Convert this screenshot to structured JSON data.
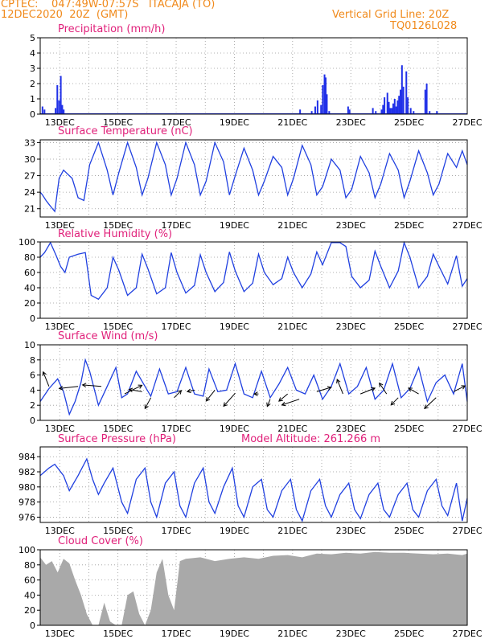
{
  "header": {
    "line1_left": "CPTEC:    047:49W-07:57S   ITACAJA (TO)",
    "line2_left": "12DEC2020  20Z  (GMT)",
    "line1_right": "Vertical Grid Line: 20Z",
    "line2_right": "TQ0126L028"
  },
  "colors": {
    "header": "#f08a1c",
    "title": "#e0207a",
    "series": "#2040e0",
    "bars": "#2030e8",
    "cloud": "#a9a9a9",
    "grid": "#999999"
  },
  "x_tick_labels": [
    "13DEC",
    "15DEC",
    "17DEC",
    "19DEC",
    "21DEC",
    "23DEC",
    "25DEC",
    "27DEC"
  ],
  "chart_data": [
    {
      "type": "bar",
      "title": "Precipitation (mm/h)",
      "ylim": [
        0,
        5
      ],
      "yticks": [
        0,
        1,
        2,
        3,
        4,
        5
      ],
      "x_days": [
        0.05,
        0.12,
        0.5,
        0.56,
        0.62,
        0.68,
        0.73,
        0.78,
        8.9,
        9.3,
        9.42,
        9.5,
        9.62,
        9.68,
        9.74,
        9.78,
        9.82,
        9.9,
        10.55,
        10.6,
        11.4,
        11.5,
        11.7,
        11.75,
        11.8,
        11.9,
        11.95,
        12.0,
        12.05,
        12.1,
        12.15,
        12.2,
        12.25,
        12.3,
        12.35,
        12.4,
        12.45,
        12.55,
        12.6,
        12.7,
        12.8,
        13.2,
        13.25,
        13.35,
        13.6
      ],
      "values": [
        0.5,
        0.3,
        0.4,
        1.9,
        0.9,
        2.5,
        0.6,
        0.3,
        0.3,
        0.2,
        0.5,
        0.9,
        0.6,
        1.9,
        2.6,
        2.4,
        1.3,
        0.2,
        0.5,
        0.3,
        0.4,
        0.2,
        0.3,
        0.6,
        1.1,
        1.4,
        0.8,
        0.4,
        0.4,
        0.7,
        1.0,
        0.5,
        0.9,
        1.2,
        1.6,
        3.2,
        1.8,
        2.8,
        1.1,
        0.4,
        0.2,
        1.6,
        2.0,
        0.2,
        0.2
      ],
      "x_range_days": [
        0,
        14.67
      ]
    },
    {
      "type": "line",
      "title": "Surface Temperature (nC)",
      "ylim": [
        19.5,
        33.5
      ],
      "yticks": [
        21,
        24,
        27,
        30,
        33
      ],
      "x_days": [
        0,
        0.08,
        0.2,
        0.3,
        0.5,
        0.65,
        0.8,
        1.1,
        1.3,
        1.5,
        1.7,
        2.0,
        2.3,
        2.5,
        2.7,
        3.0,
        3.3,
        3.5,
        3.7,
        4.0,
        4.3,
        4.5,
        4.7,
        5.0,
        5.3,
        5.5,
        5.7,
        6.0,
        6.3,
        6.5,
        6.7,
        7.0,
        7.3,
        7.5,
        7.7,
        8.0,
        8.3,
        8.5,
        8.7,
        9.0,
        9.3,
        9.5,
        9.7,
        10.0,
        10.3,
        10.5,
        10.7,
        11.0,
        11.3,
        11.5,
        11.7,
        12.0,
        12.3,
        12.5,
        12.7,
        13.0,
        13.3,
        13.5,
        13.7,
        14.0,
        14.3,
        14.5,
        14.67
      ],
      "values": [
        24,
        23.5,
        22.5,
        21.8,
        20.5,
        26.5,
        28,
        26.5,
        23,
        22.5,
        29,
        33,
        28,
        23.5,
        27.5,
        33,
        28.5,
        23.5,
        26.5,
        33,
        29,
        23.5,
        26.5,
        33,
        29,
        23.5,
        26,
        33,
        29.5,
        23.5,
        27,
        32,
        28,
        23.5,
        26,
        30.5,
        28.5,
        23.5,
        26.5,
        32.5,
        29,
        23.5,
        25,
        30,
        28,
        23,
        24.5,
        30.5,
        27.5,
        23,
        25.5,
        31,
        28,
        23,
        26,
        31.5,
        27.5,
        23.5,
        25.5,
        31,
        28.5,
        31.5,
        29
      ]
    },
    {
      "type": "line",
      "title": "Relative Humidity (%)",
      "ylim": [
        0,
        100
      ],
      "yticks": [
        0,
        20,
        40,
        60,
        80,
        100
      ],
      "x_days": [
        0,
        0.15,
        0.35,
        0.55,
        0.7,
        0.85,
        1.0,
        1.3,
        1.55,
        1.75,
        2.0,
        2.3,
        2.5,
        2.7,
        3.0,
        3.3,
        3.5,
        3.7,
        4.0,
        4.3,
        4.5,
        4.7,
        5.0,
        5.3,
        5.5,
        5.7,
        6.0,
        6.3,
        6.5,
        6.7,
        7.0,
        7.3,
        7.5,
        7.7,
        8.0,
        8.3,
        8.5,
        8.7,
        9.0,
        9.3,
        9.5,
        9.7,
        10.0,
        10.3,
        10.5,
        10.7,
        11.0,
        11.3,
        11.5,
        11.7,
        12.0,
        12.3,
        12.5,
        12.7,
        13.0,
        13.3,
        13.5,
        13.7,
        14.0,
        14.3,
        14.5,
        14.67
      ],
      "values": [
        80,
        86,
        99,
        82,
        68,
        60,
        80,
        84,
        86,
        30,
        25,
        40,
        80,
        63,
        30,
        40,
        84,
        65,
        32,
        40,
        86,
        60,
        33,
        43,
        83,
        60,
        35,
        47,
        87,
        62,
        35,
        46,
        84,
        60,
        44,
        52,
        80,
        60,
        40,
        58,
        87,
        70,
        99,
        99,
        94,
        55,
        40,
        50,
        88,
        68,
        40,
        62,
        99,
        80,
        40,
        55,
        84,
        68,
        45,
        82,
        42,
        52
      ]
    },
    {
      "type": "line",
      "title": "Surface Wind (m/s)",
      "ylim": [
        0,
        10
      ],
      "yticks": [
        0,
        2,
        4,
        6,
        8,
        10
      ],
      "x_days": [
        0,
        0.3,
        0.6,
        0.8,
        1.0,
        1.2,
        1.4,
        1.55,
        1.7,
        2.0,
        2.3,
        2.6,
        2.8,
        3.0,
        3.3,
        3.6,
        3.8,
        4.1,
        4.4,
        4.7,
        5.0,
        5.3,
        5.6,
        5.8,
        6.1,
        6.4,
        6.7,
        7.0,
        7.3,
        7.6,
        7.9,
        8.2,
        8.5,
        8.8,
        9.1,
        9.4,
        9.7,
        10.0,
        10.3,
        10.6,
        10.9,
        11.2,
        11.5,
        11.8,
        12.1,
        12.4,
        12.7,
        13.0,
        13.3,
        13.6,
        13.9,
        14.2,
        14.5,
        14.67
      ],
      "values": [
        2.5,
        4.2,
        5.5,
        3.8,
        0.8,
        2.5,
        5.0,
        8.0,
        6.5,
        2.0,
        4.5,
        7.0,
        3.0,
        3.5,
        6.5,
        4.5,
        3.2,
        6.8,
        3.5,
        3.8,
        7.0,
        3.5,
        3.2,
        6.8,
        3.8,
        4.0,
        7.5,
        3.5,
        3.0,
        6.5,
        3.0,
        4.8,
        7.0,
        4.0,
        3.5,
        6.0,
        2.8,
        4.5,
        7.5,
        3.5,
        4.5,
        7.0,
        2.8,
        4.0,
        7.5,
        3.0,
        4.2,
        7.0,
        2.5,
        5.0,
        6.0,
        3.5,
        7.5,
        2.5
      ]
    },
    {
      "type": "line",
      "title": "Surface Pressure (hPa)",
      "annotation": "Model Altitude: 261.266 m",
      "ylim": [
        975.3,
        985.3
      ],
      "yticks": [
        976,
        978,
        980,
        982,
        984
      ],
      "x_days": [
        0,
        0.3,
        0.5,
        0.8,
        1.0,
        1.3,
        1.6,
        1.8,
        2.0,
        2.2,
        2.5,
        2.8,
        3.0,
        3.3,
        3.6,
        3.8,
        4.0,
        4.3,
        4.6,
        4.8,
        5.0,
        5.3,
        5.6,
        5.8,
        6.0,
        6.3,
        6.6,
        6.8,
        7.0,
        7.3,
        7.6,
        7.8,
        8.0,
        8.3,
        8.6,
        8.8,
        9.0,
        9.3,
        9.6,
        9.8,
        10.0,
        10.3,
        10.6,
        10.8,
        11.0,
        11.3,
        11.6,
        11.8,
        12.0,
        12.3,
        12.6,
        12.8,
        13.0,
        13.3,
        13.6,
        13.8,
        14.0,
        14.3,
        14.5,
        14.67
      ],
      "values": [
        981.5,
        982.5,
        983.0,
        981.5,
        979.5,
        981.5,
        983.7,
        981.0,
        979.0,
        980.5,
        982.5,
        978.0,
        976.5,
        981.0,
        982.5,
        978.0,
        976.0,
        980.5,
        982.0,
        977.5,
        976.0,
        980.5,
        982.5,
        978.0,
        976.5,
        980.0,
        982.5,
        977.5,
        976.0,
        980.0,
        981.0,
        977.0,
        976.0,
        979.5,
        981.0,
        977.0,
        975.5,
        979.5,
        981.0,
        977.5,
        976.0,
        979.0,
        980.5,
        977.0,
        975.8,
        979.0,
        980.5,
        977.0,
        976.0,
        979.0,
        980.5,
        977.0,
        976.0,
        979.5,
        981.0,
        977.5,
        976.2,
        980.5,
        975.5,
        978.5
      ]
    },
    {
      "type": "area",
      "title": "Cloud Cover (%)",
      "ylim": [
        0,
        100
      ],
      "yticks": [
        0,
        20,
        40,
        60,
        80,
        100
      ],
      "x_days": [
        0,
        0.2,
        0.4,
        0.6,
        0.8,
        1.0,
        1.2,
        1.4,
        1.6,
        1.8,
        2.0,
        2.2,
        2.4,
        2.6,
        2.8,
        3.0,
        3.2,
        3.4,
        3.6,
        3.8,
        4.0,
        4.2,
        4.4,
        4.6,
        4.8,
        5.0,
        5.5,
        6.0,
        6.5,
        7.0,
        7.5,
        8.0,
        8.5,
        9.0,
        9.5,
        10.0,
        10.5,
        11.0,
        11.5,
        12.0,
        12.5,
        13.0,
        13.5,
        14.0,
        14.5,
        14.67
      ],
      "values": [
        90,
        80,
        85,
        70,
        88,
        82,
        60,
        40,
        15,
        0,
        0,
        30,
        5,
        0,
        0,
        40,
        45,
        15,
        0,
        20,
        70,
        88,
        40,
        20,
        85,
        88,
        90,
        85,
        88,
        90,
        88,
        92,
        93,
        90,
        95,
        94,
        96,
        95,
        97,
        96,
        96,
        95,
        94,
        95,
        93,
        95
      ]
    }
  ]
}
